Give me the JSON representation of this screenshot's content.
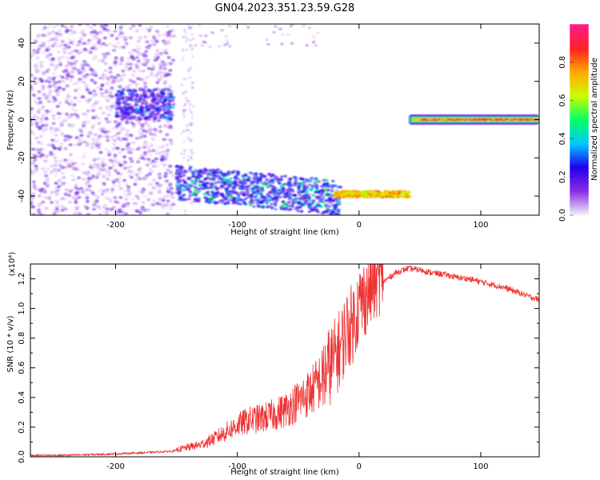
{
  "title": "GN04.2023.351.23.59.G28",
  "chart_data": [
    {
      "type": "heatmap",
      "xlabel": "Height of straight line (km)",
      "ylabel": "Frequency (Hz)",
      "xlim": [
        -270,
        148
      ],
      "ylim": [
        -50,
        50
      ],
      "x_ticks": [
        -200,
        -100,
        0,
        100
      ],
      "y_ticks": [
        -40,
        -20,
        0,
        20,
        40
      ],
      "colorbar": {
        "label": "Normalized spectral amplitude",
        "range": [
          0,
          1
        ],
        "ticks": [
          "0.0",
          "0.2",
          "0.4",
          "0.6",
          "0.8"
        ],
        "colors": [
          "#f2eefa",
          "#8a2be2",
          "#2200ee",
          "#00c8ff",
          "#00ff66",
          "#c8ff00",
          "#ffaa00",
          "#ff2222",
          "#ff1a8c"
        ]
      },
      "regions": [
        {
          "x": [
            -270,
            -152
          ],
          "freq": [
            -50,
            50
          ],
          "amplitude": 0.15
        },
        {
          "x": [
            -200,
            -152
          ],
          "freq": [
            0,
            16
          ],
          "amplitude": 0.25
        },
        {
          "x": [
            -150,
            -15
          ],
          "freq": [
            -47,
            -27
          ],
          "amplitude": 0.3
        },
        {
          "x": [
            -20,
            42
          ],
          "freq": [
            -41,
            -37
          ],
          "amplitude": 0.75
        },
        {
          "x": [
            42,
            148
          ],
          "freq": [
            -2,
            2
          ],
          "amplitude": 0.9
        }
      ]
    },
    {
      "type": "line",
      "xlabel": "Height of straight line (km)",
      "ylabel": "SNR (10 * v/v)",
      "y_scale_note": "(x10⁴)",
      "xlim": [
        -270,
        148
      ],
      "ylim": [
        0,
        1.3
      ],
      "x_ticks": [
        -200,
        -100,
        0,
        100
      ],
      "y_ticks": [
        "0.0",
        "0.2",
        "0.4",
        "0.6",
        "0.8",
        "1.0",
        "1.2"
      ],
      "series": [
        {
          "color": "#ee3333",
          "x": [
            -270,
            -240,
            -200,
            -170,
            -150,
            -130,
            -120,
            -110,
            -100,
            -90,
            -80,
            -70,
            -60,
            -50,
            -40,
            -30,
            -25,
            -20,
            -15,
            -10,
            -5,
            0,
            10,
            20,
            30,
            40,
            50,
            60,
            70,
            80,
            90,
            100,
            110,
            120,
            130,
            140,
            148
          ],
          "y": [
            0.01,
            0.01,
            0.02,
            0.03,
            0.04,
            0.07,
            0.1,
            0.14,
            0.18,
            0.21,
            0.22,
            0.24,
            0.27,
            0.32,
            0.37,
            0.45,
            0.52,
            0.58,
            0.66,
            0.78,
            0.82,
            0.94,
            1.06,
            1.18,
            1.24,
            1.27,
            1.26,
            1.24,
            1.23,
            1.21,
            1.2,
            1.18,
            1.16,
            1.14,
            1.11,
            1.08,
            1.06
          ]
        }
      ]
    }
  ]
}
